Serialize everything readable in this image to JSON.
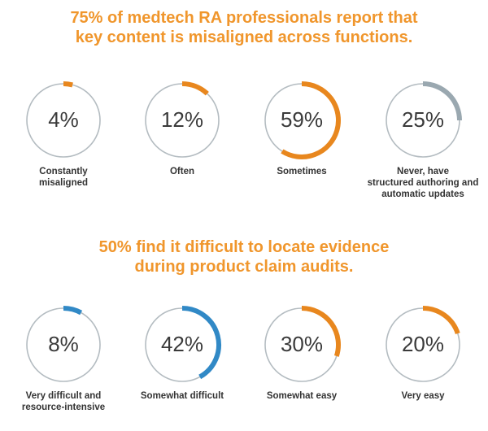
{
  "colors": {
    "title": "#f0962c",
    "track": "#b4bcc1",
    "orange": "#e8871e",
    "gray": "#9aa8b0",
    "blue": "#3189c6"
  },
  "chart_data": [
    {
      "type": "donut",
      "title_lines": [
        "75% of medtech RA professionals report that",
        "key content is misaligned across functions."
      ],
      "items": [
        {
          "label": "4%",
          "value": 4,
          "caption": "Constantly\nmisaligned",
          "color": "orange"
        },
        {
          "label": "12%",
          "value": 12,
          "caption": "Often",
          "color": "orange"
        },
        {
          "label": "59%",
          "value": 59,
          "caption": "Sometimes",
          "color": "orange"
        },
        {
          "label": "25%",
          "value": 25,
          "caption": "Never, have\nstructured authoring and\nautomatic updates",
          "color": "gray"
        }
      ]
    },
    {
      "type": "donut",
      "title_lines": [
        "50% find it difficult to locate evidence",
        "during product claim audits."
      ],
      "items": [
        {
          "label": "8%",
          "value": 8,
          "caption": "Very difficult and\nresource-intensive",
          "color": "blue"
        },
        {
          "label": "42%",
          "value": 42,
          "caption": "Somewhat difficult",
          "color": "blue"
        },
        {
          "label": "30%",
          "value": 30,
          "caption": "Somewhat easy",
          "color": "orange"
        },
        {
          "label": "20%",
          "value": 20,
          "caption": "Very easy",
          "color": "orange"
        }
      ]
    }
  ]
}
